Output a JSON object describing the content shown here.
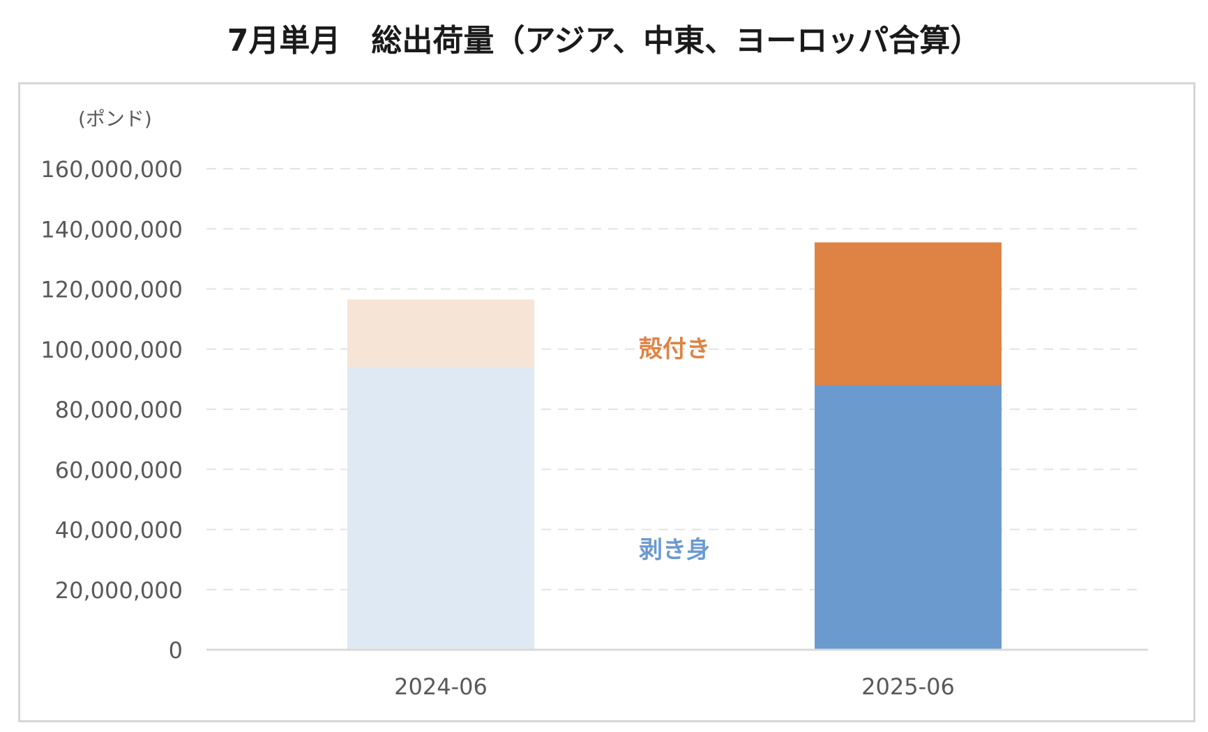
{
  "title": "7月単月　総出荷量（アジア、中東、ヨーロッパ合算）",
  "chart_data": {
    "type": "bar",
    "stacked": true,
    "title": "7月単月　総出荷量（アジア、中東、ヨーロッパ合算）",
    "ylabel": "(ポンド)",
    "xlabel": "",
    "ylim": [
      0,
      160000000
    ],
    "y_ticks": [
      0,
      20000000,
      40000000,
      60000000,
      80000000,
      100000000,
      120000000,
      140000000,
      160000000
    ],
    "y_tick_labels": [
      "0",
      "20,000,000",
      "40,000,000",
      "60,000,000",
      "80,000,000",
      "100,000,000",
      "120,000,000",
      "140,000,000",
      "160,000,000"
    ],
    "grid": true,
    "categories": [
      "2024-06",
      "2025-06"
    ],
    "series": [
      {
        "name": "剥き身",
        "values": [
          94000000,
          88000000
        ],
        "colors": [
          "#dfe9f4",
          "#6b9acf"
        ],
        "label_color": "#6b9acf"
      },
      {
        "name": "殻付き",
        "values": [
          22500000,
          47500000
        ],
        "colors": [
          "#f6e4d6",
          "#de8344"
        ],
        "label_color": "#de8344"
      }
    ],
    "colors": {
      "axis_line": "#d9d9d9",
      "gridline": "#e3e3e3",
      "tick_text": "#595959"
    }
  }
}
